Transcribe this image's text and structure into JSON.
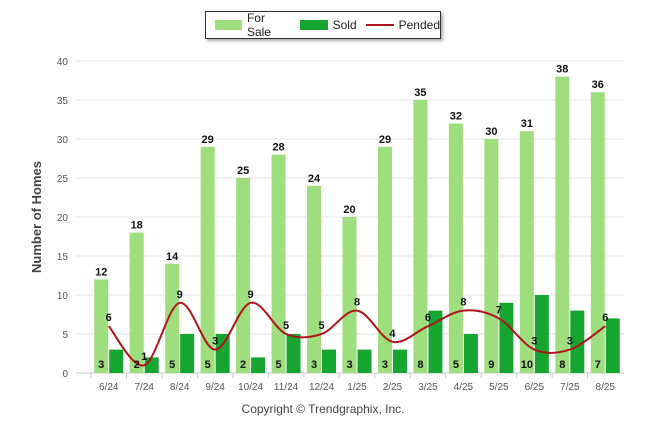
{
  "chart_data": {
    "type": "bar",
    "ylabel": "Number of Homes",
    "xlabel": "",
    "ylim": [
      0,
      40
    ],
    "yticks": [
      0,
      5,
      10,
      15,
      20,
      25,
      30,
      35,
      40
    ],
    "categories": [
      "6/24",
      "7/24",
      "8/24",
      "9/24",
      "10/24",
      "11/24",
      "12/24",
      "1/25",
      "2/25",
      "3/25",
      "4/25",
      "5/25",
      "6/25",
      "7/25",
      "8/25"
    ],
    "series": [
      {
        "name": "For Sale",
        "type": "bar",
        "color": "#9ede7e",
        "values": [
          12,
          18,
          14,
          29,
          25,
          28,
          24,
          20,
          29,
          35,
          32,
          30,
          31,
          38,
          36
        ]
      },
      {
        "name": "Sold",
        "type": "bar",
        "color": "#17a531",
        "values": [
          3,
          2,
          5,
          5,
          2,
          5,
          3,
          3,
          3,
          8,
          5,
          9,
          10,
          8,
          7
        ]
      },
      {
        "name": "Pended",
        "type": "line",
        "color": "#b0141a",
        "values": [
          6,
          1,
          9,
          3,
          9,
          5,
          5,
          8,
          4,
          6,
          8,
          7,
          3,
          3,
          6
        ]
      }
    ],
    "grid": true,
    "legend_position": "top"
  },
  "footer": {
    "copyright": "Copyright © Trendgraphix, Inc."
  }
}
